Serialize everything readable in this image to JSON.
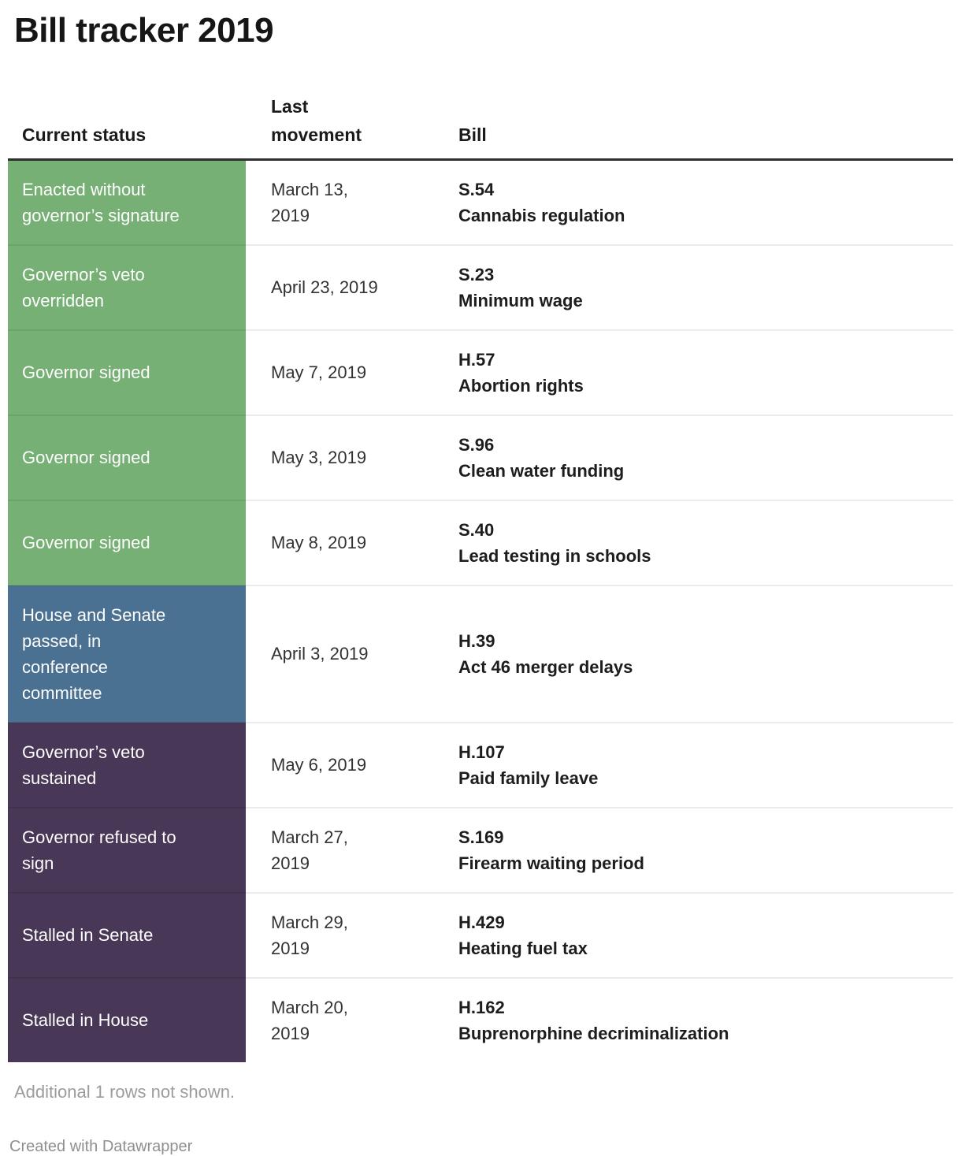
{
  "title": "Bill tracker 2019",
  "colors": {
    "green": "#77b074",
    "blue": "#4a7092",
    "purple": "#483756",
    "header_border": "#2e2e2e"
  },
  "chart_data": {
    "type": "table",
    "title": "Bill tracker 2019",
    "columns": [
      "Current status",
      "Last movement",
      "Bill"
    ],
    "rows": [
      {
        "status": "Enacted without governor’s signature",
        "status_color": "green",
        "last_movement": "March 13, 2019",
        "bill_id": "S.54",
        "bill_name": "Cannabis regulation"
      },
      {
        "status": "Governor’s veto overridden",
        "status_color": "green",
        "last_movement": "April 23, 2019",
        "bill_id": "S.23",
        "bill_name": "Minimum wage"
      },
      {
        "status": "Governor signed",
        "status_color": "green",
        "last_movement": "May 7, 2019",
        "bill_id": "H.57",
        "bill_name": "Abortion rights"
      },
      {
        "status": "Governor signed",
        "status_color": "green",
        "last_movement": "May 3, 2019",
        "bill_id": "S.96",
        "bill_name": "Clean water funding"
      },
      {
        "status": "Governor signed",
        "status_color": "green",
        "last_movement": "May 8, 2019",
        "bill_id": "S.40",
        "bill_name": "Lead testing in schools"
      },
      {
        "status": "House and Senate passed, in conference committee",
        "status_color": "blue",
        "last_movement": "April 3, 2019",
        "bill_id": "H.39",
        "bill_name": "Act 46 merger delays"
      },
      {
        "status": "Governor’s veto sustained",
        "status_color": "purple",
        "last_movement": "May 6, 2019",
        "bill_id": "H.107",
        "bill_name": "Paid family leave"
      },
      {
        "status": "Governor refused to sign",
        "status_color": "purple",
        "last_movement": "March 27, 2019",
        "bill_id": "S.169",
        "bill_name": "Firearm waiting period"
      },
      {
        "status": "Stalled in Senate",
        "status_color": "purple",
        "last_movement": "March 29, 2019",
        "bill_id": "H.429",
        "bill_name": "Heating fuel tax"
      },
      {
        "status": "Stalled in House",
        "status_color": "purple",
        "last_movement": "March 20, 2019",
        "bill_id": "H.162",
        "bill_name": "Buprenorphine decriminalization"
      }
    ]
  },
  "footer": {
    "note": "Additional 1 rows not shown.",
    "attribution": "Created with Datawrapper"
  }
}
